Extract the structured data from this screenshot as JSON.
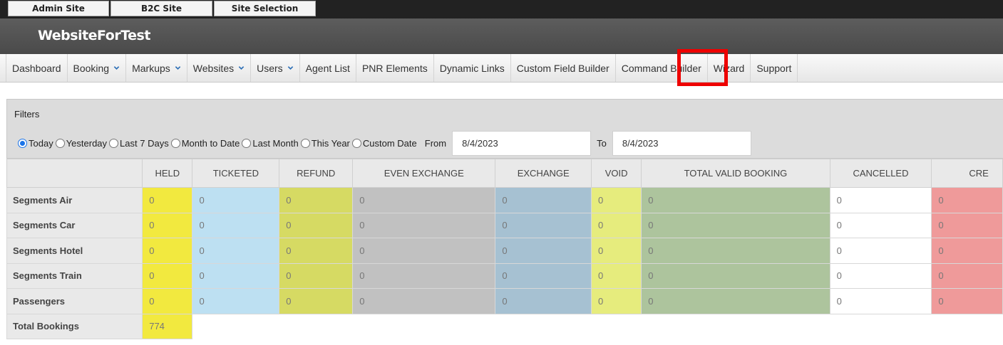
{
  "top_buttons": [
    "Admin Site",
    "B2C Site",
    "Site Selection"
  ],
  "brand": "WebsiteForTest",
  "nav": [
    {
      "label": "Dashboard",
      "dropdown": false
    },
    {
      "label": "Booking",
      "dropdown": true
    },
    {
      "label": "Markups",
      "dropdown": true
    },
    {
      "label": "Websites",
      "dropdown": true
    },
    {
      "label": "Users",
      "dropdown": true
    },
    {
      "label": "Agent List",
      "dropdown": false
    },
    {
      "label": "PNR Elements",
      "dropdown": false
    },
    {
      "label": "Dynamic Links",
      "dropdown": false
    },
    {
      "label": "Custom Field Builder",
      "dropdown": false
    },
    {
      "label": "Command Builder",
      "dropdown": false
    },
    {
      "label": "Wizard",
      "dropdown": false
    },
    {
      "label": "Support",
      "dropdown": false
    }
  ],
  "highlighted_nav": "Wizard",
  "filters": {
    "title": "Filters",
    "options": [
      "Today",
      "Yesterday",
      "Last 7 Days",
      "Month to Date",
      "Last Month",
      "This Year",
      "Custom Date"
    ],
    "selected": "Today",
    "from_label": "From",
    "from_value": "8/4/2023",
    "to_label": "To",
    "to_value": "8/4/2023"
  },
  "table": {
    "columns": [
      {
        "label": "HELD",
        "color": "#f2e93f"
      },
      {
        "label": "TICKETED",
        "color": "#bde0f2"
      },
      {
        "label": "REFUND",
        "color": "#d6da63"
      },
      {
        "label": "EVEN EXCHANGE",
        "color": "#c1c1c1"
      },
      {
        "label": "EXCHANGE",
        "color": "#a6c1d2"
      },
      {
        "label": "VOID",
        "color": "#e6ec7d"
      },
      {
        "label": "TOTAL VALID BOOKING",
        "color": "#adc49d"
      },
      {
        "label": "CANCELLED",
        "color": "#ffffff"
      },
      {
        "label": "CRE",
        "color": "#ef9a9a"
      }
    ],
    "rows": [
      {
        "label": "Segments Air",
        "values": [
          "0",
          "0",
          "0",
          "0",
          "0",
          "0",
          "0",
          "0",
          "0"
        ]
      },
      {
        "label": "Segments Car",
        "values": [
          "0",
          "0",
          "0",
          "0",
          "0",
          "0",
          "0",
          "0",
          "0"
        ]
      },
      {
        "label": "Segments Hotel",
        "values": [
          "0",
          "0",
          "0",
          "0",
          "0",
          "0",
          "0",
          "0",
          "0"
        ]
      },
      {
        "label": "Segments Train",
        "values": [
          "0",
          "0",
          "0",
          "0",
          "0",
          "0",
          "0",
          "0",
          "0"
        ]
      },
      {
        "label": "Passengers",
        "values": [
          "0",
          "0",
          "0",
          "0",
          "0",
          "0",
          "0",
          "0",
          "0"
        ]
      }
    ],
    "total": {
      "label": "Total Bookings",
      "value": "774"
    }
  }
}
